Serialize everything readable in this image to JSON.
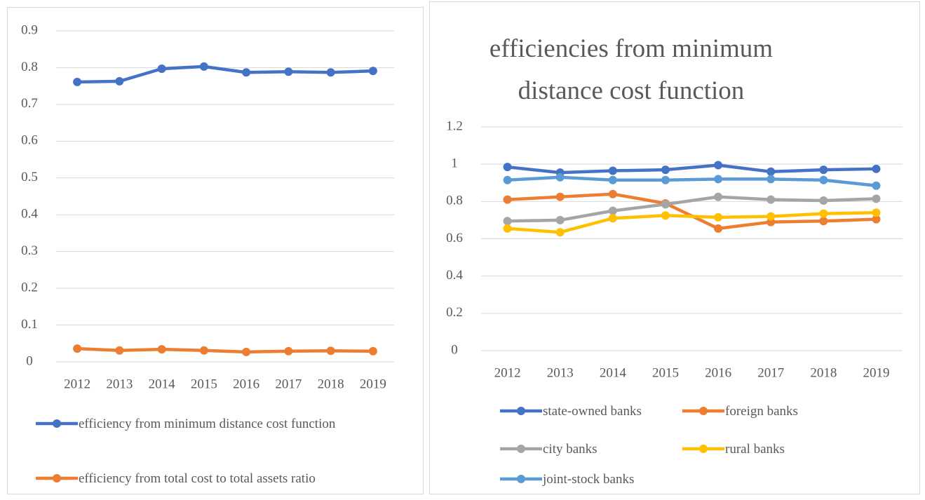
{
  "chart_data": [
    {
      "type": "line",
      "categories": [
        "2012",
        "2013",
        "2014",
        "2015",
        "2016",
        "2017",
        "2018",
        "2019"
      ],
      "series": [
        {
          "name": "efficiency from minimum distance cost function",
          "color": "#4472c4",
          "values": [
            0.761,
            0.763,
            0.797,
            0.803,
            0.787,
            0.789,
            0.787,
            0.791
          ]
        },
        {
          "name": "efficiency from total cost to total assets ratio",
          "color": "#ed7d31",
          "values": [
            0.036,
            0.031,
            0.034,
            0.031,
            0.027,
            0.029,
            0.03,
            0.029
          ]
        }
      ],
      "ylim": [
        0,
        0.9
      ],
      "yticks": [
        0,
        0.1,
        0.2,
        0.3,
        0.4,
        0.5,
        0.6,
        0.7,
        0.8,
        0.9
      ],
      "grid": true,
      "legend": "bottom"
    },
    {
      "type": "line",
      "title": "efficiencies from minimum distance cost function",
      "categories": [
        "2012",
        "2013",
        "2014",
        "2015",
        "2016",
        "2017",
        "2018",
        "2019"
      ],
      "series": [
        {
          "name": "state-owned banks",
          "color": "#4472c4",
          "values": [
            0.985,
            0.955,
            0.965,
            0.97,
            0.995,
            0.96,
            0.97,
            0.975
          ]
        },
        {
          "name": "foreign banks",
          "color": "#ed7d31",
          "values": [
            0.81,
            0.825,
            0.84,
            0.79,
            0.655,
            0.69,
            0.695,
            0.705
          ]
        },
        {
          "name": "city banks",
          "color": "#a5a5a5",
          "values": [
            0.695,
            0.7,
            0.75,
            0.785,
            0.825,
            0.81,
            0.805,
            0.815
          ]
        },
        {
          "name": "rural banks",
          "color": "#ffc000",
          "values": [
            0.655,
            0.635,
            0.71,
            0.725,
            0.715,
            0.72,
            0.735,
            0.74
          ]
        },
        {
          "name": "joint-stock banks",
          "color": "#5b9bd5",
          "values": [
            0.915,
            0.93,
            0.915,
            0.915,
            0.92,
            0.92,
            0.915,
            0.885
          ]
        }
      ],
      "ylim": [
        0,
        1.2
      ],
      "yticks": [
        0,
        0.2,
        0.4,
        0.6,
        0.8,
        1,
        1.2
      ],
      "grid": true,
      "legend": "bottom"
    }
  ]
}
